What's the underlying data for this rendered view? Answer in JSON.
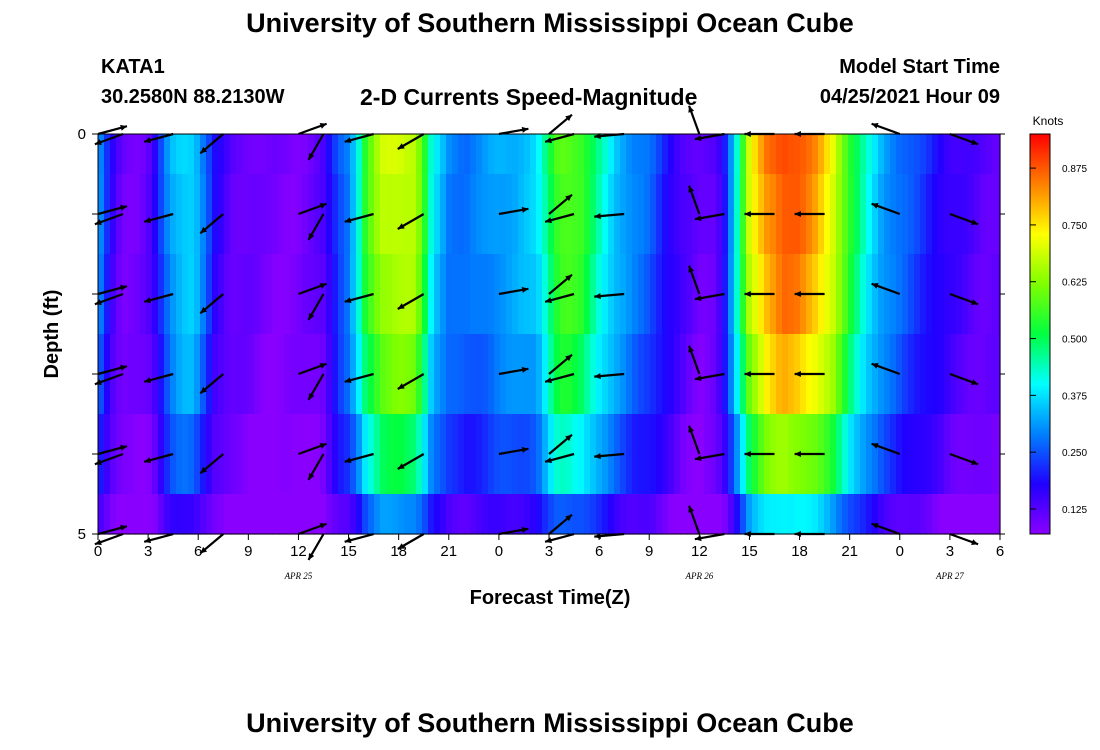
{
  "header": {
    "title": "University of Southern Mississippi Ocean Cube",
    "station": "KATA1",
    "coords": "30.2580N  88.2130W",
    "chart_title": "2-D Currents Speed-Magnitude",
    "model_start_label": "Model Start Time",
    "model_start_value": "04/25/2021 Hour 09"
  },
  "footer": {
    "title": "University of Southern Mississippi Ocean Cube"
  },
  "colors": {
    "scale": [
      "#8a00ff",
      "#2000ff",
      "#0080ff",
      "#00ffff",
      "#00ff40",
      "#80ff00",
      "#ffff00",
      "#ff8000",
      "#ff0000"
    ]
  },
  "chart_data": {
    "type": "heatmap",
    "title": "2-D Currents Speed-Magnitude",
    "xlabel": "Forecast Time(Z)",
    "ylabel": "Depth (ft)",
    "x_tick_labels": [
      "0",
      "3",
      "6",
      "9",
      "12",
      "15",
      "18",
      "21",
      "0",
      "3",
      "6",
      "9",
      "12",
      "15",
      "18",
      "21",
      "0",
      "3",
      "6"
    ],
    "x_range_hours": [
      0,
      54
    ],
    "date_labels": [
      {
        "text": "APR  25",
        "hour": 12
      },
      {
        "text": "APR  26",
        "hour": 36
      },
      {
        "text": "APR  27",
        "hour": 51
      }
    ],
    "y_tick_labels": [
      "0",
      "5"
    ],
    "ylim": [
      0,
      5
    ],
    "depth_rows": [
      0,
      1,
      2,
      3,
      4,
      5
    ],
    "colorbar": {
      "label": "Knots",
      "ticks": [
        "0.125",
        "0.250",
        "0.375",
        "0.500",
        "0.625",
        "0.750",
        "0.875"
      ],
      "range": [
        0.07,
        0.95
      ]
    },
    "speed_profile_knots": [
      [
        0,
        0.33
      ],
      [
        0.5,
        0.22
      ],
      [
        1,
        0.14
      ],
      [
        1.5,
        0.1
      ],
      [
        2,
        0.1
      ],
      [
        2.5,
        0.1
      ],
      [
        3,
        0.12
      ],
      [
        3.5,
        0.18
      ],
      [
        4,
        0.28
      ],
      [
        4.5,
        0.34
      ],
      [
        5,
        0.37
      ],
      [
        5.5,
        0.38
      ],
      [
        6,
        0.34
      ],
      [
        6.5,
        0.26
      ],
      [
        7,
        0.18
      ],
      [
        7.5,
        0.15
      ],
      [
        8,
        0.12
      ],
      [
        9,
        0.11
      ],
      [
        10,
        0.09
      ],
      [
        11,
        0.09
      ],
      [
        12,
        0.09
      ],
      [
        13,
        0.11
      ],
      [
        13.5,
        0.13
      ],
      [
        14,
        0.2
      ],
      [
        14.5,
        0.26
      ],
      [
        15,
        0.3
      ],
      [
        15.5,
        0.4
      ],
      [
        16,
        0.55
      ],
      [
        16.5,
        0.62
      ],
      [
        17,
        0.68
      ],
      [
        18,
        0.7
      ],
      [
        19,
        0.68
      ],
      [
        19.5,
        0.56
      ],
      [
        20,
        0.4
      ],
      [
        21,
        0.3
      ],
      [
        22,
        0.28
      ],
      [
        23,
        0.3
      ],
      [
        24,
        0.33
      ],
      [
        25,
        0.34
      ],
      [
        26,
        0.36
      ],
      [
        26.5,
        0.4
      ],
      [
        27,
        0.5
      ],
      [
        27.5,
        0.58
      ],
      [
        28,
        0.6
      ],
      [
        29,
        0.56
      ],
      [
        30,
        0.45
      ],
      [
        31,
        0.36
      ],
      [
        32,
        0.3
      ],
      [
        33,
        0.27
      ],
      [
        34,
        0.2
      ],
      [
        35,
        0.14
      ],
      [
        36,
        0.1
      ],
      [
        37,
        0.12
      ],
      [
        37.5,
        0.2
      ],
      [
        38,
        0.35
      ],
      [
        38.5,
        0.52
      ],
      [
        39,
        0.7
      ],
      [
        40,
        0.84
      ],
      [
        41,
        0.9
      ],
      [
        42,
        0.88
      ],
      [
        43,
        0.82
      ],
      [
        44,
        0.72
      ],
      [
        45,
        0.55
      ],
      [
        46,
        0.42
      ],
      [
        47,
        0.33
      ],
      [
        48,
        0.28
      ],
      [
        49,
        0.24
      ],
      [
        50,
        0.2
      ],
      [
        51,
        0.16
      ],
      [
        52,
        0.14
      ],
      [
        53,
        0.12
      ],
      [
        54,
        0.12
      ]
    ],
    "depth_factor": [
      1.0,
      0.98,
      0.95,
      0.88,
      0.72,
      0.45
    ],
    "vector_hours": [
      0,
      1.5,
      4.5,
      7.5,
      12,
      13.5,
      16.5,
      19.5,
      24,
      27,
      28.5,
      31.5,
      36,
      37.5,
      40.5,
      43.5,
      48,
      51
    ],
    "vector_dir_deg": [
      15,
      200,
      195,
      220,
      20,
      240,
      195,
      210,
      10,
      40,
      195,
      185,
      110,
      190,
      180,
      180,
      160,
      340
    ]
  }
}
